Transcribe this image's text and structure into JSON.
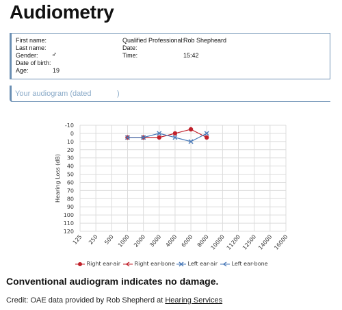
{
  "page": {
    "title": "Audiometry"
  },
  "patient": {
    "first_name_label": "First name:",
    "last_name_label": "Last name:",
    "gender_label": "Gender:",
    "gender_value": "♂",
    "dob_label": "Date of birth:",
    "age_label": "Age:",
    "age_value": "19",
    "professional_label": "Qualified Professional:",
    "professional_value": "Rob Shepheard",
    "date_label": "Date:",
    "time_label": "Time:",
    "time_value": "15:42"
  },
  "audiogram_header": {
    "left": "Your audiogram (dated",
    "right": ")"
  },
  "chart_data": {
    "type": "line",
    "ylabel": "Hearing Loss (dB)",
    "ylim": [
      -10,
      120
    ],
    "y_reversed": true,
    "y_ticks": [
      "-10",
      "0",
      "10",
      "20",
      "30",
      "40",
      "50",
      "60",
      "70",
      "80",
      "90",
      "100",
      "110",
      "120"
    ],
    "x_categories": [
      "125",
      "250",
      "500",
      "1000",
      "2000",
      "3000",
      "4000",
      "6000",
      "8000",
      "10000",
      "11200",
      "12500",
      "14000",
      "16000"
    ],
    "grid": true,
    "legend_position": "bottom",
    "series": [
      {
        "name": "Right ear-air",
        "color": "#c0202a",
        "marker": "circle",
        "x": [
          "1000",
          "2000",
          "3000",
          "4000",
          "6000",
          "8000"
        ],
        "y": [
          5,
          5,
          5,
          0,
          -5,
          5
        ]
      },
      {
        "name": "Right ear-bone",
        "color": "#c0202a",
        "marker": "arrow",
        "x": [],
        "y": []
      },
      {
        "name": "Left ear-air",
        "color": "#4a7ab8",
        "marker": "x",
        "x": [
          "1000",
          "2000",
          "3000",
          "4000",
          "6000",
          "8000"
        ],
        "y": [
          5,
          5,
          0,
          5,
          10,
          0
        ]
      },
      {
        "name": "Left ear-bone",
        "color": "#4a7ab8",
        "marker": "arrow",
        "x": [],
        "y": []
      }
    ]
  },
  "conclusion": "Conventional audiogram indicates no damage.",
  "credit": {
    "prefix": "Credit: OAE data provided by Rob Shepherd at ",
    "link": "Hearing Services"
  }
}
